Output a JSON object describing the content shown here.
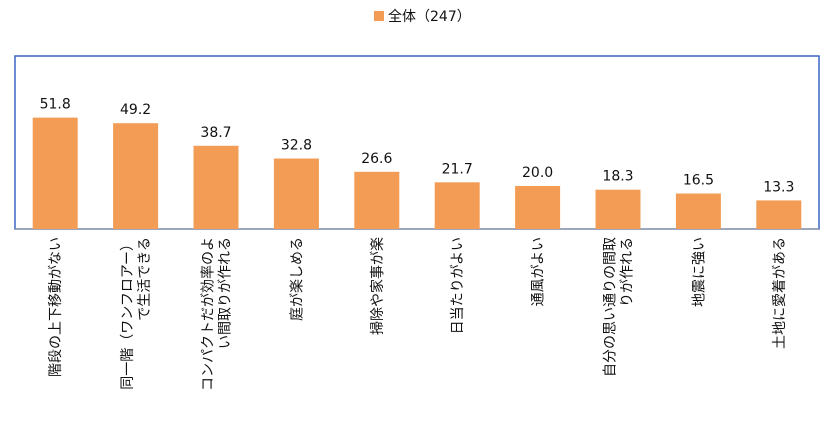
{
  "chart_data": {
    "type": "bar",
    "title": "",
    "xlabel": "",
    "ylabel": "",
    "ylim": [
      0,
      60
    ],
    "grid": false,
    "legend": {
      "position": "top-center"
    },
    "series": [
      {
        "name": "全体（247）",
        "color": "#F39C55",
        "values": [
          51.8,
          49.2,
          38.7,
          32.8,
          26.6,
          21.7,
          20.0,
          18.3,
          16.5,
          13.3
        ],
        "value_labels": [
          "51.8",
          "49.2",
          "38.7",
          "32.8",
          "26.6",
          "21.7",
          "20.0",
          "18.3",
          "16.5",
          "13.3"
        ]
      }
    ],
    "categories": [
      "階段の上下移動がない",
      "同一階（ワンフロアー）で生活できる",
      "コンパクトだが効率のよい間取りが作れる",
      "庭が楽しめる",
      "掃除や家事が楽",
      "日当たりがよい",
      "通風がよい",
      "自分の思い通りの間取りが作れる",
      "地震に強い",
      "土地に愛着がある"
    ],
    "category_lines": [
      [
        "階段の上下移動がない"
      ],
      [
        "同一階（ワンフロアー）",
        "で生活できる"
      ],
      [
        "コンパクトだが効率のよ",
        "い間取りが作れる"
      ],
      [
        "庭が楽しめる"
      ],
      [
        "掃除や家事が楽"
      ],
      [
        "日当たりがよい"
      ],
      [
        "通風がよい"
      ],
      [
        "自分の思い通りの間取",
        "りが作れる"
      ],
      [
        "地震に強い"
      ],
      [
        "土地に愛着がある"
      ]
    ]
  }
}
